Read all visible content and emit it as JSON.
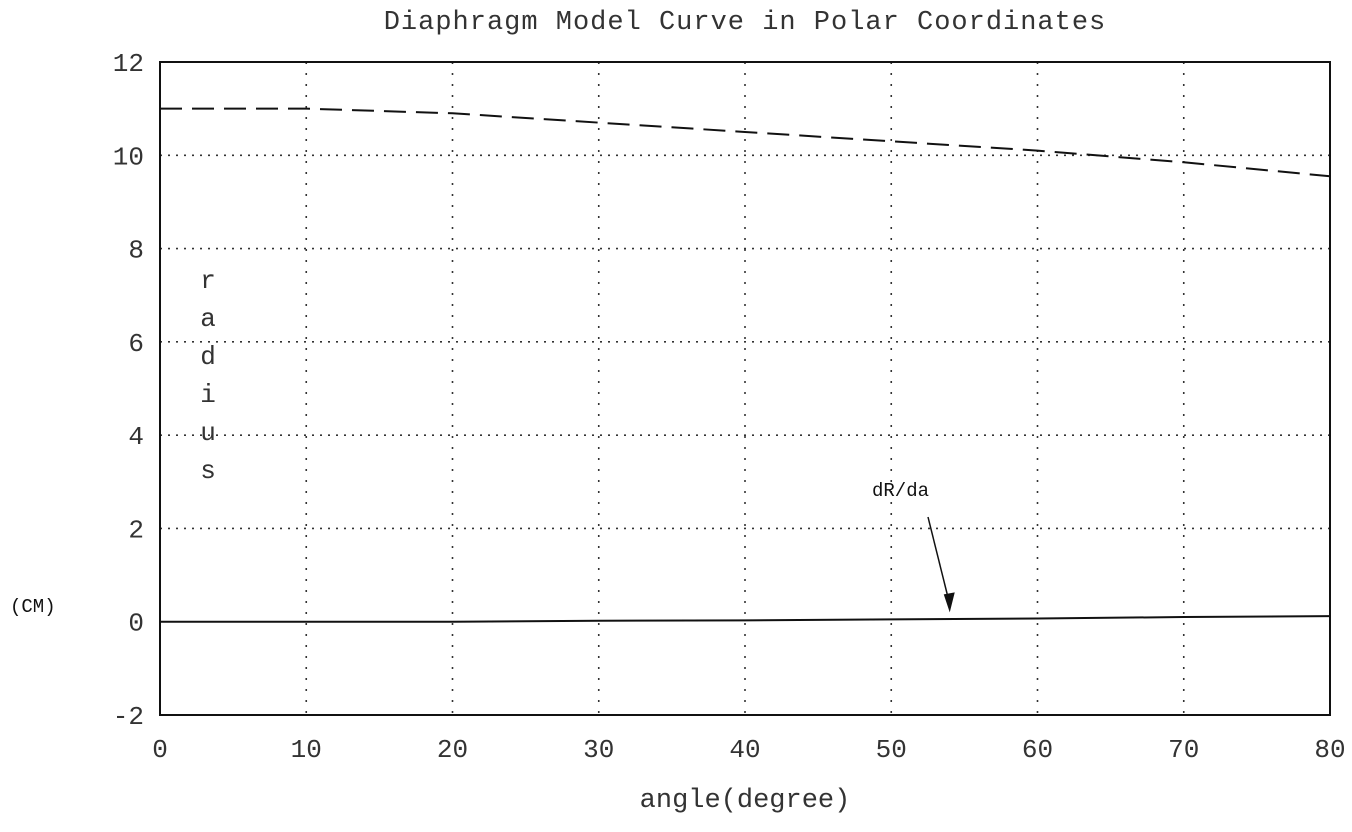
{
  "chart_data": {
    "type": "line",
    "title": "Diaphragm Model Curve in Polar Coordinates",
    "xlabel": "angle(degree)",
    "ylabel": "radius",
    "yunits": "(CM)",
    "xlim": [
      0,
      80
    ],
    "ylim": [
      -2,
      12
    ],
    "xticks": [
      "0",
      "10",
      "20",
      "30",
      "40",
      "50",
      "60",
      "70",
      "80"
    ],
    "yticks": [
      "-2",
      "0",
      "2",
      "4",
      "6",
      "8",
      "10",
      "12"
    ],
    "grid": true,
    "series": [
      {
        "style": "dashed",
        "x": [
          0,
          10,
          20,
          30,
          40,
          50,
          60,
          70,
          80
        ],
        "values": [
          11.0,
          11.0,
          10.9,
          10.7,
          10.5,
          10.3,
          10.1,
          9.85,
          9.55
        ]
      },
      {
        "style": "solid",
        "x": [
          0,
          10,
          20,
          30,
          40,
          50,
          60,
          70,
          80
        ],
        "values": [
          0.0,
          0.0,
          0.0,
          0.02,
          0.03,
          0.05,
          0.07,
          0.1,
          0.12
        ]
      }
    ],
    "annotations": [
      {
        "text": "dR/da",
        "x": 54,
        "y": 0.2
      }
    ]
  }
}
